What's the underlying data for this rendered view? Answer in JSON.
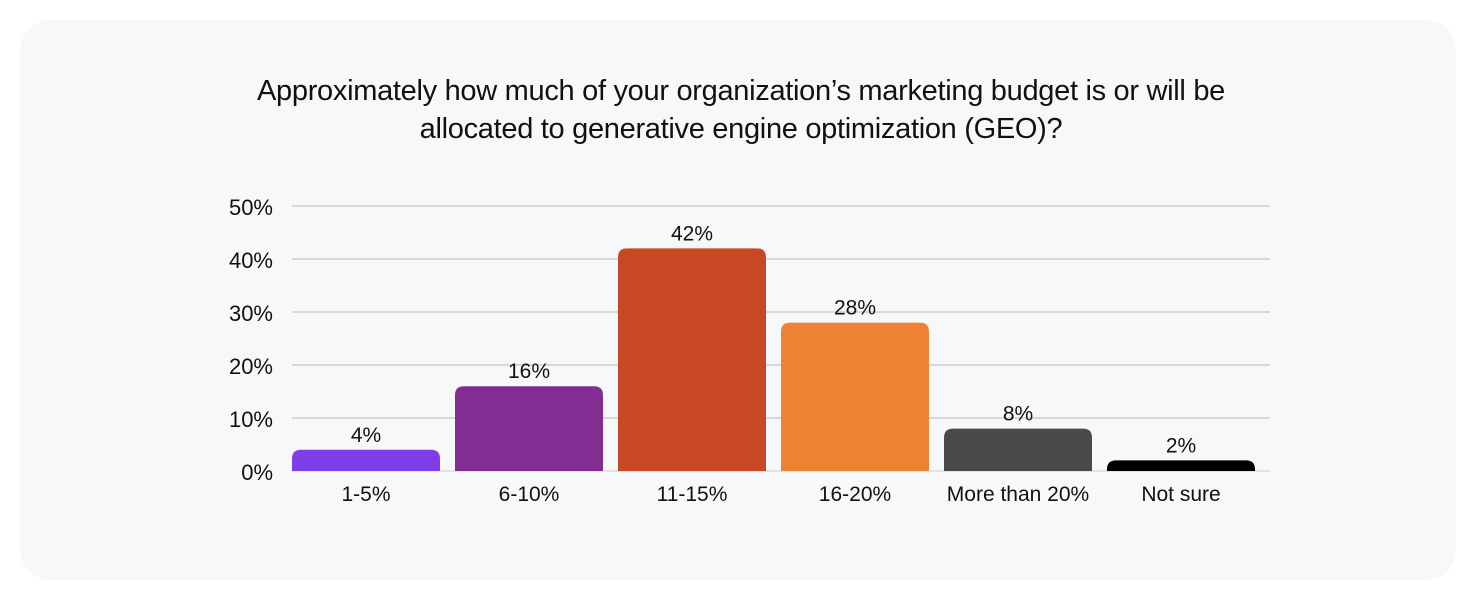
{
  "chart_data": {
    "type": "bar",
    "title_lines": [
      "Approximately how much of your organization’s marketing budget is or will be",
      "allocated to generative engine optimization (GEO)?"
    ],
    "categories": [
      "1-5%",
      "6-10%",
      "11-15%",
      "16-20%",
      "More than 20%",
      "Not sure"
    ],
    "values": [
      4,
      16,
      42,
      28,
      8,
      2
    ],
    "value_labels": [
      "4%",
      "16%",
      "42%",
      "28%",
      "8%",
      "2%"
    ],
    "colors": [
      "#7f3de8",
      "#822d92",
      "#c84823",
      "#ee8133",
      "#4a4a4a",
      "#000000"
    ],
    "ylim": [
      0,
      50
    ],
    "yticks": [
      0,
      10,
      20,
      30,
      40,
      50
    ],
    "ytick_labels": [
      "0%",
      "10%",
      "20%",
      "30%",
      "40%",
      "50%"
    ],
    "xlabel": "",
    "ylabel": "",
    "grid": true,
    "legend": "none"
  }
}
